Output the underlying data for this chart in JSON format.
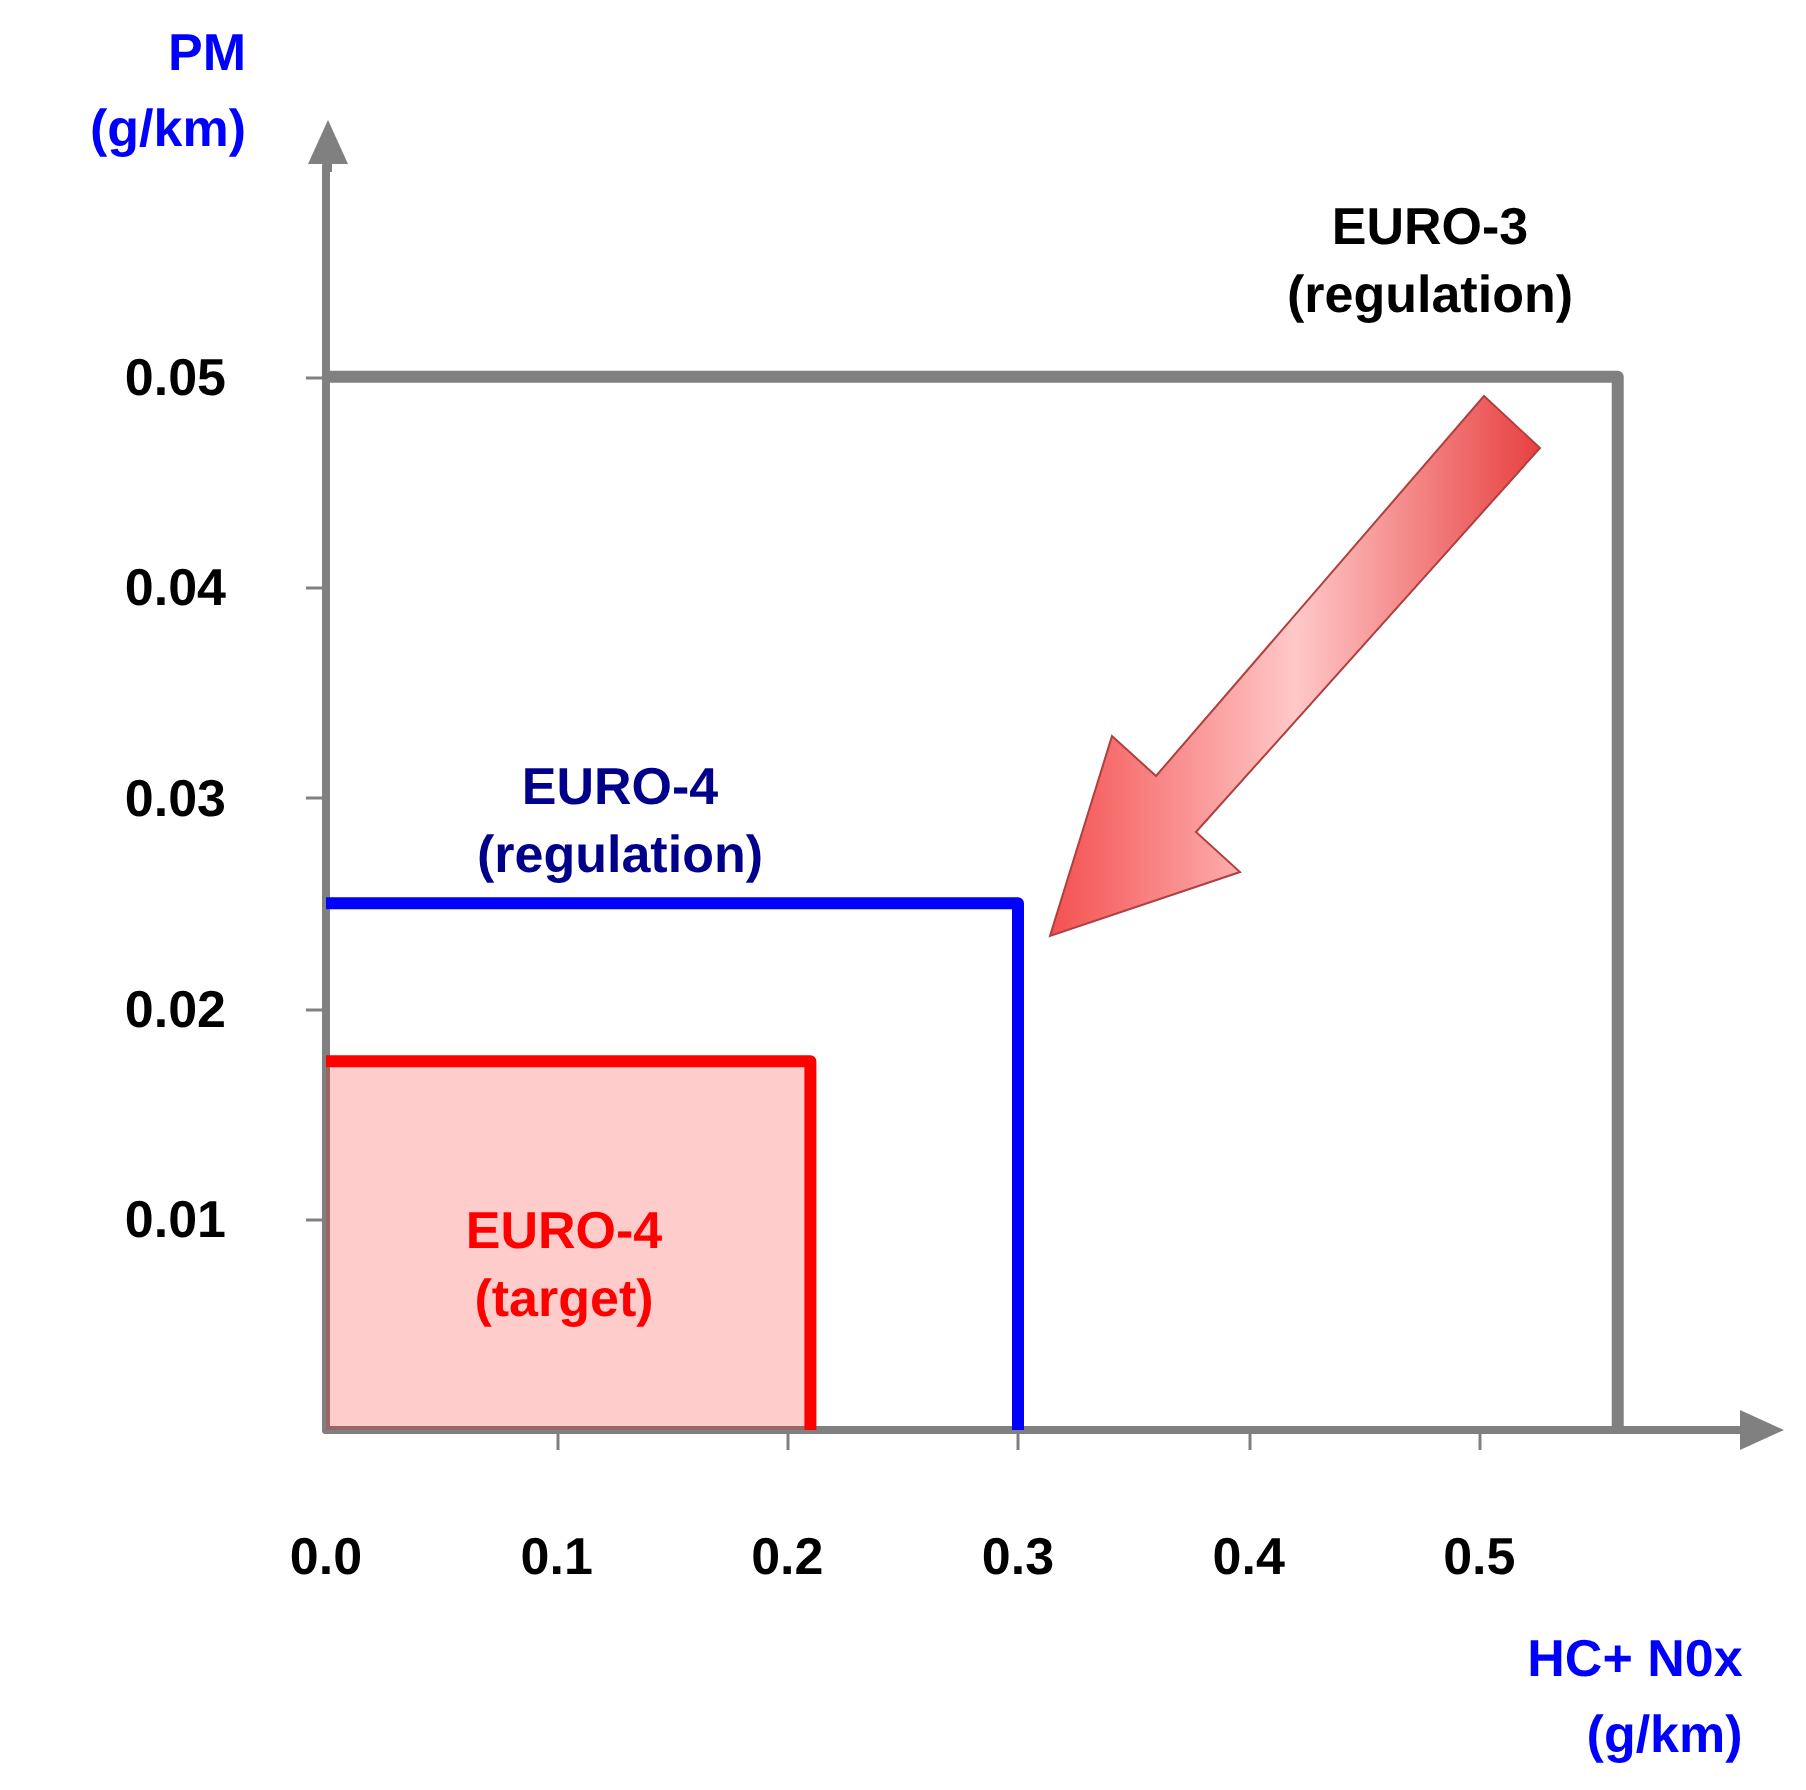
{
  "chart_data": {
    "type": "line",
    "xlabel": "HC+ N0x\n(g/km)",
    "ylabel": "PM\n(g/km)",
    "xlim": [
      0,
      0.6
    ],
    "xticks": [
      {
        "value": 0,
        "label": "0.0"
      },
      0.1,
      0.2,
      0.3,
      0.4,
      0.5
    ],
    "ylim": [
      0,
      0.06
    ],
    "yticks": [
      0.01,
      0.02,
      0.03,
      0.04,
      0.05
    ],
    "series": [
      {
        "color": "#808080",
        "x": [
          0,
          0.56,
          0.56
        ],
        "values": [
          0.05,
          0.05,
          0
        ]
      },
      {
        "color": "#0000ff",
        "x": [
          0,
          0.3,
          0.3
        ],
        "values": [
          0.025,
          0.025,
          0
        ]
      },
      {
        "type": "area",
        "color": "#ff0000",
        "x": [
          0,
          0.21,
          0.21
        ],
        "values": [
          0.0175,
          0.0175,
          0
        ]
      }
    ],
    "annotations": [
      "EURO-3\n(regulation)",
      "EURO-4\n(regulation)",
      "EURO-4\n(target)"
    ],
    "marker": "none",
    "line_style": "solid",
    "grid": false
  }
}
